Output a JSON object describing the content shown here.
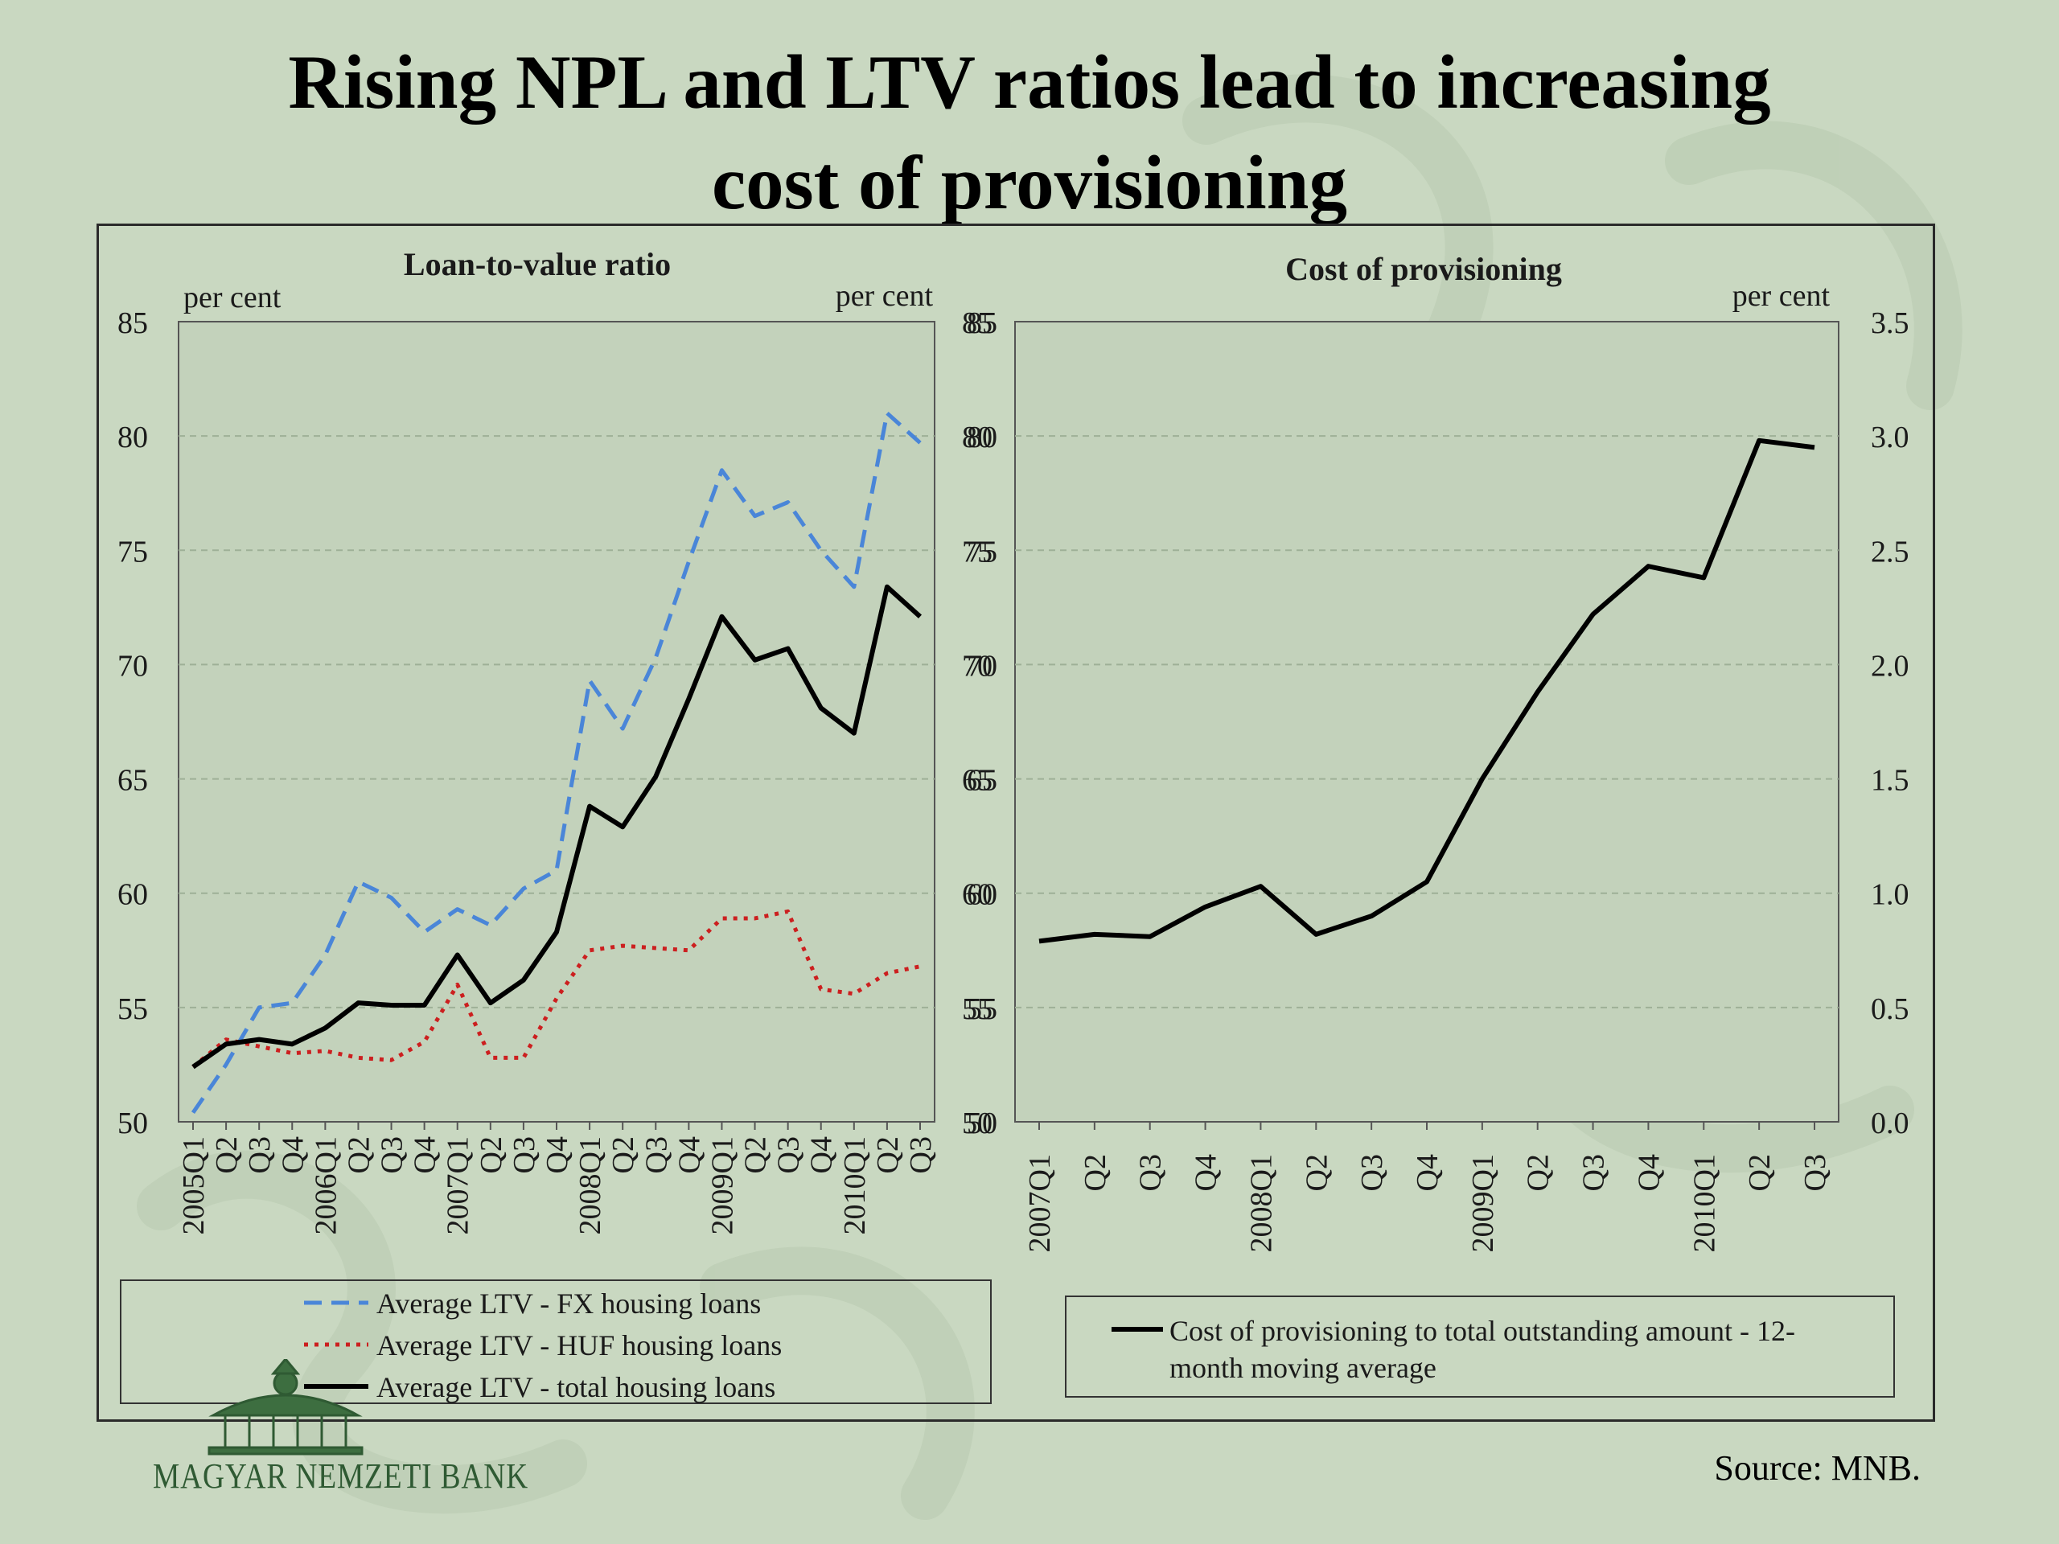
{
  "title_line1": "Rising NPL and LTV ratios lead to increasing",
  "title_line2": "cost of provisioning",
  "logo_text": "MAGYAR NEMZETI BANK",
  "source": "Source: MNB.",
  "chart_data": [
    {
      "type": "line",
      "title": "Loan-to-value ratio",
      "left_unit": "per cent",
      "right_unit": "per cent",
      "ylim": [
        50,
        85
      ],
      "yticks": [
        50,
        55,
        60,
        65,
        70,
        75,
        80,
        85
      ],
      "categories": [
        "2005Q1",
        "Q2",
        "Q3",
        "Q4",
        "2006Q1",
        "Q2",
        "Q3",
        "Q4",
        "2007Q1",
        "Q2",
        "Q3",
        "Q4",
        "2008Q1",
        "Q2",
        "Q3",
        "Q4",
        "2009Q1",
        "Q2",
        "Q3",
        "Q4",
        "2010Q1",
        "Q2",
        "Q3"
      ],
      "grid": true,
      "series": [
        {
          "name": "Average LTV - FX housing loans",
          "color": "#4a86d8",
          "style": "dashed",
          "values": [
            50.4,
            52.5,
            55.0,
            55.2,
            57.3,
            60.5,
            59.8,
            58.3,
            59.3,
            58.6,
            60.2,
            61.0,
            69.3,
            67.2,
            70.3,
            74.5,
            78.5,
            76.5,
            77.1,
            75.0,
            73.4,
            81.0,
            79.7
          ]
        },
        {
          "name": "Average LTV - HUF housing loans",
          "color": "#cc1f1f",
          "style": "dotted",
          "values": [
            52.4,
            53.6,
            53.3,
            53.0,
            53.1,
            52.8,
            52.7,
            53.5,
            56.0,
            52.8,
            52.8,
            55.4,
            57.5,
            57.7,
            57.6,
            57.5,
            58.9,
            58.9,
            59.2,
            55.8,
            55.6,
            56.5,
            56.8
          ]
        },
        {
          "name": "Average LTV - total housing loans",
          "color": "#000000",
          "style": "solid",
          "values": [
            52.4,
            53.4,
            53.6,
            53.4,
            54.1,
            55.2,
            55.1,
            55.1,
            57.3,
            55.2,
            56.2,
            58.3,
            63.8,
            62.9,
            65.1,
            68.5,
            72.1,
            70.2,
            70.7,
            68.1,
            67.0,
            73.4,
            72.1
          ]
        }
      ]
    },
    {
      "type": "line",
      "title": "Cost of provisioning",
      "right_unit": "per cent",
      "ylim_left": [
        50,
        85
      ],
      "yticks_left": [
        50,
        55,
        60,
        65,
        70,
        75,
        80,
        85
      ],
      "ylim": [
        0,
        3.5
      ],
      "yticks": [
        "0.0",
        "0.5",
        "1.0",
        "1.5",
        "2.0",
        "2.5",
        "3.0",
        "3.5"
      ],
      "categories": [
        "2007Q1",
        "Q2",
        "Q3",
        "Q4",
        "2008Q1",
        "Q2",
        "Q3",
        "Q4",
        "2009Q1",
        "Q2",
        "Q3",
        "Q4",
        "2010Q1",
        "Q2",
        "Q3"
      ],
      "grid": true,
      "series": [
        {
          "name": "Cost of provisioning to total outstanding amount - 12-month moving average",
          "color": "#000000",
          "style": "solid",
          "values": [
            0.79,
            0.82,
            0.81,
            0.94,
            1.03,
            0.82,
            0.9,
            1.05,
            1.5,
            1.88,
            2.22,
            2.43,
            2.38,
            2.98,
            2.95
          ]
        }
      ]
    }
  ],
  "legend_left": [
    {
      "label": "Average LTV - FX housing loans",
      "color": "#4a86d8",
      "style": "dashed"
    },
    {
      "label": "Average LTV - HUF housing loans",
      "color": "#cc1f1f",
      "style": "dotted"
    },
    {
      "label": "Average LTV - total housing loans",
      "color": "#000000",
      "style": "solid"
    }
  ],
  "legend_right": {
    "line1": "Cost of  provisioning to total outstanding amount  - 12-",
    "line2": "month moving average",
    "color": "#000000"
  }
}
